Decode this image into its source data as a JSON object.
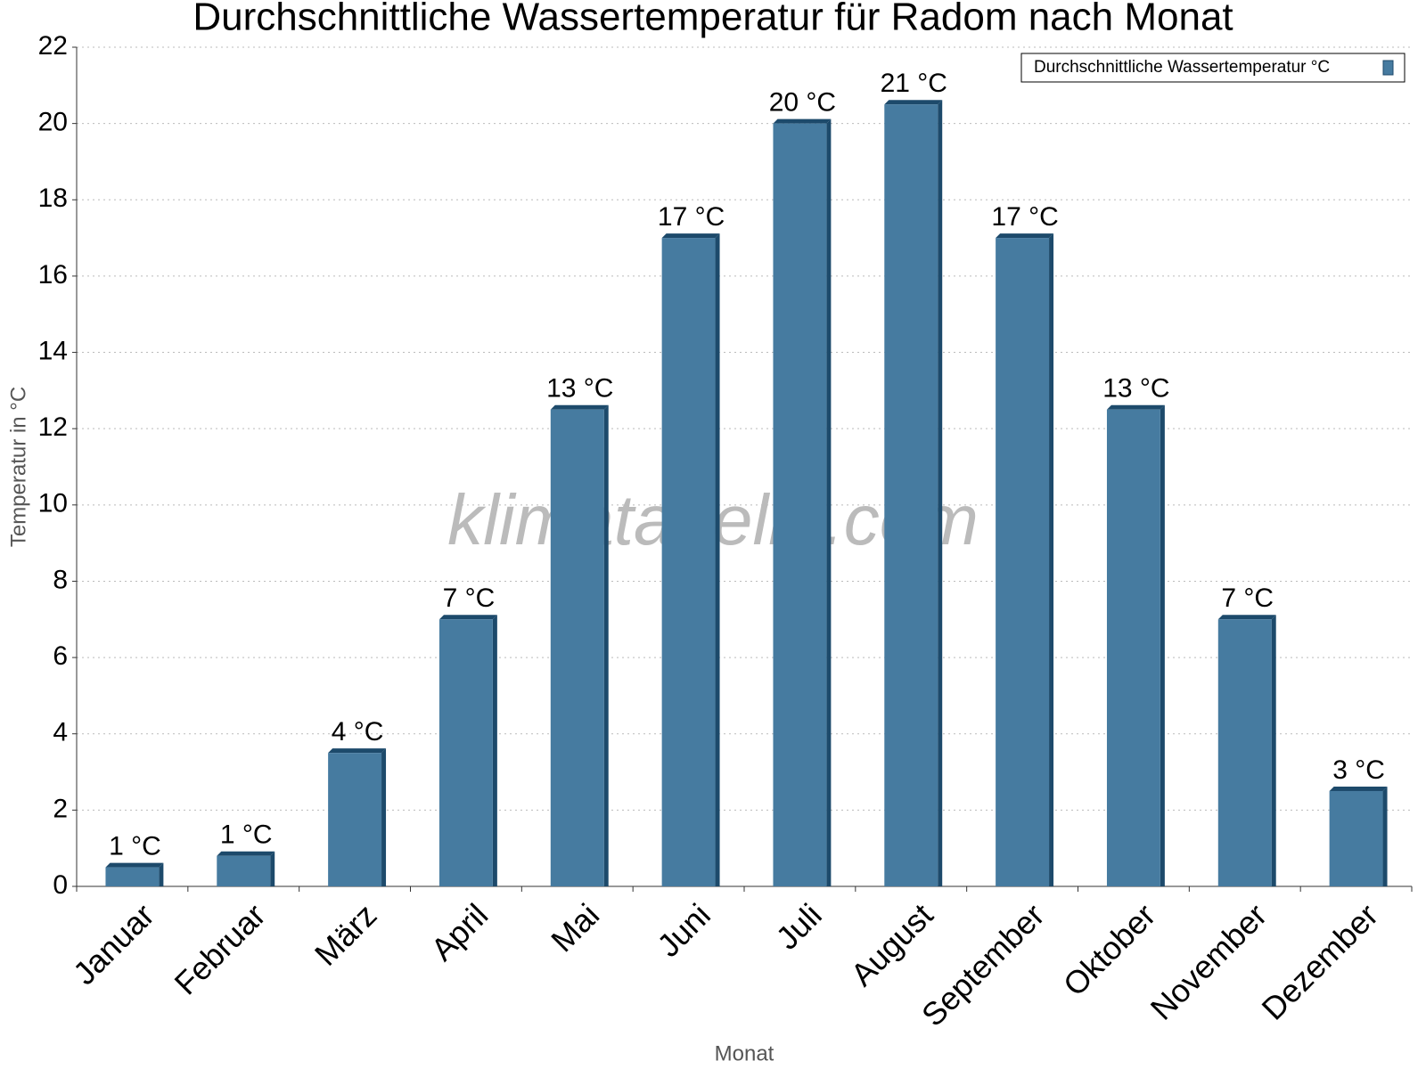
{
  "chart_data": {
    "type": "bar",
    "title": "Durchschnittliche Wassertemperatur für Radom nach Monat",
    "x_label": "Monat",
    "y_label": "Temperatur in °C",
    "watermark": "klimatabelle.com",
    "categories": [
      "Januar",
      "Februar",
      "März",
      "April",
      "Mai",
      "Juni",
      "Juli",
      "August",
      "September",
      "Oktober",
      "November",
      "Dezember"
    ],
    "series": [
      {
        "name": "Durchschnittliche Wassertemperatur °C",
        "color": "#467ba0",
        "values": [
          0.5,
          0.8,
          3.5,
          7.0,
          12.5,
          17.0,
          20.0,
          20.5,
          17.0,
          12.5,
          7.0,
          2.5
        ],
        "value_labels": [
          "1 °C",
          "1 °C",
          "4 °C",
          "7 °C",
          "13 °C",
          "17 °C",
          "20 °C",
          "21 °C",
          "17 °C",
          "13 °C",
          "7 °C",
          "3 °C"
        ]
      }
    ],
    "ylim": [
      0,
      22
    ],
    "yticks": [
      0,
      2,
      4,
      6,
      8,
      10,
      12,
      14,
      16,
      18,
      20,
      22
    ],
    "grid": true,
    "legend": "top-right"
  }
}
